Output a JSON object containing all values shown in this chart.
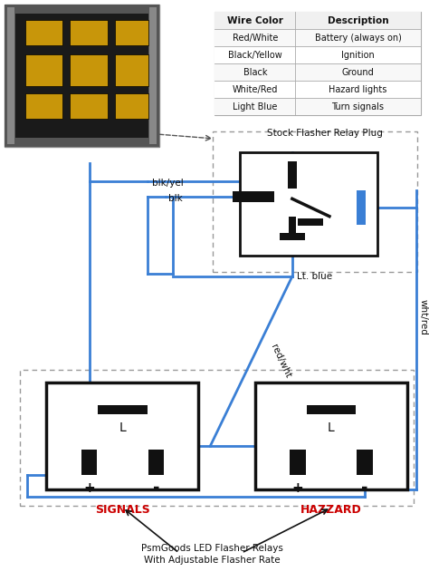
{
  "bg_color": "#ffffff",
  "wire_color": "#3a7fd5",
  "relay_box_color": "#111111",
  "dashed_box_color": "#999999",
  "text_color": "#111111",
  "red_text_color": "#cc0000",
  "table_headers": [
    "Wire Color",
    "Description"
  ],
  "table_rows": [
    [
      "Red/White",
      "Battery (always on)"
    ],
    [
      "Black/Yellow",
      "Ignition"
    ],
    [
      "Black",
      "Ground"
    ],
    [
      "White/Red",
      "Hazard lights"
    ],
    [
      "Light Blue",
      "Turn signals"
    ]
  ],
  "footer_label1": "PsmGoods LED Flasher Relays",
  "footer_label2": "With Adjustable Flasher Rate",
  "signals_label": "SIGNALS",
  "hazzard_label": "HAZZARD",
  "stock_label": "Stock Flasher Relay Plug",
  "label_blkyel": "blk/yel",
  "label_blk": "blk",
  "label_ltblue": "Lt. blue",
  "label_redwht": "red/wht",
  "label_whtred": "wht/red"
}
